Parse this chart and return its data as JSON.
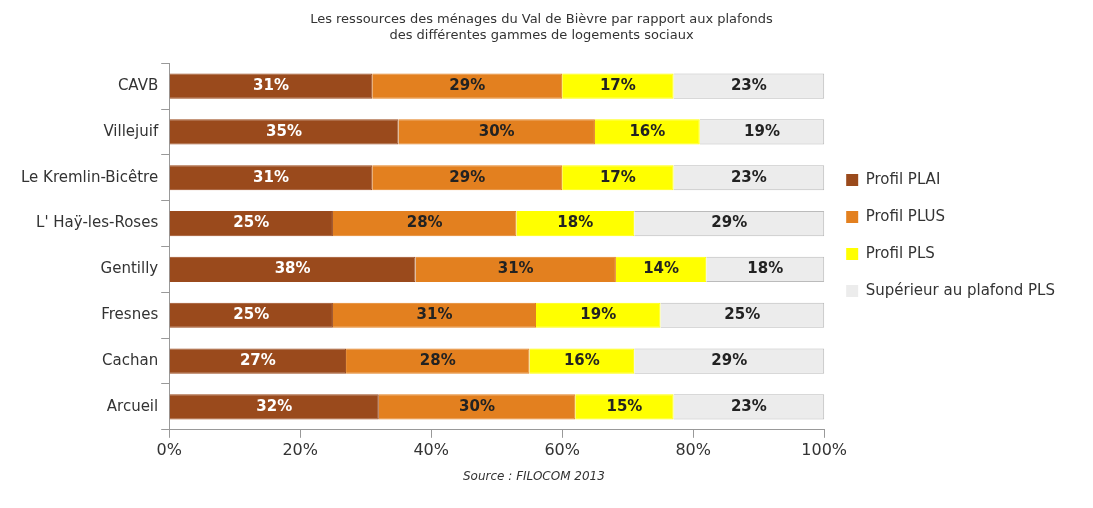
{
  "chart_data": {
    "type": "bar",
    "orientation": "horizontal",
    "stacked": true,
    "title": [
      "Les ressources des ménages du Val de Bièvre par rapport aux plafonds",
      "des différentes gammes de logements sociaux"
    ],
    "categories": [
      "CAVB",
      "Villejuif",
      "Le Kremlin-Bicêtre",
      "L' Haÿ-les-Roses",
      "Gentilly",
      "Fresnes",
      "Cachan",
      "Arcueil"
    ],
    "series": [
      {
        "name": "Profil PLAI",
        "color": "#9a4a1c",
        "values": [
          31,
          35,
          31,
          25,
          37.6,
          25,
          27,
          32
        ],
        "value_labels": [
          "31%",
          "35%",
          "31%",
          "25%",
          "38%",
          "25%",
          "27%",
          "32%"
        ]
      },
      {
        "name": "Profil PLUS",
        "color": "#e3801f",
        "values": [
          29,
          30,
          29,
          28,
          30.6,
          31,
          28,
          30
        ],
        "value_labels": [
          "29%",
          "30%",
          "29%",
          "28%",
          "31%",
          "31%",
          "28%",
          "30%"
        ]
      },
      {
        "name": "Profil PLS",
        "color": "#ffff00",
        "values": [
          17,
          16,
          17,
          18,
          13.8,
          19,
          16,
          15
        ],
        "value_labels": [
          "17%",
          "16%",
          "17%",
          "18%",
          "14%",
          "19%",
          "16%",
          "15%"
        ]
      },
      {
        "name": "Supérieur au plafond PLS",
        "color": "#ececec",
        "values": [
          23,
          19,
          23,
          29,
          18,
          25,
          29,
          23
        ],
        "value_labels": [
          "23%",
          "19%",
          "23%",
          "29%",
          "18%",
          "25%",
          "29%",
          "23%"
        ]
      }
    ],
    "xlim": [
      0,
      100
    ],
    "xticks": [
      {
        "value": 0,
        "label": "0%"
      },
      {
        "value": 20,
        "label": "20%"
      },
      {
        "value": 40,
        "label": "40%"
      },
      {
        "value": 60,
        "label": "60%"
      },
      {
        "value": 80,
        "label": "80%"
      },
      {
        "value": 100,
        "label": "100%"
      }
    ],
    "grid": false,
    "legend": "right",
    "annotations": [
      "Source : FILOCOM 2013"
    ]
  }
}
